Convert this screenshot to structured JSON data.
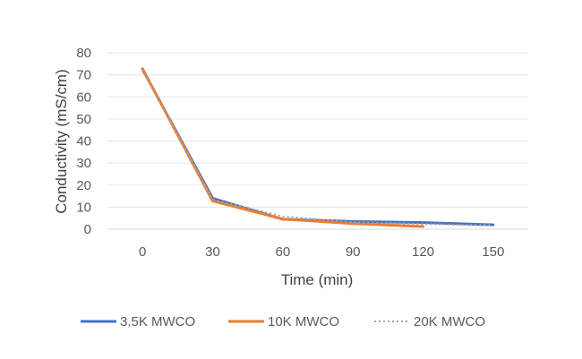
{
  "chart_data": {
    "type": "line",
    "x": [
      0,
      30,
      60,
      90,
      120,
      150
    ],
    "xlabel": "Time (min)",
    "ylabel": "Conductivity (mS/cm)",
    "ylim": [
      0,
      80
    ],
    "yticks": [
      0,
      10,
      20,
      30,
      40,
      50,
      60,
      70,
      80
    ],
    "grid": true,
    "legend": "bottom",
    "series": [
      {
        "name": "3.5K MWCO",
        "color": "#4472C4",
        "style": "solid",
        "values": [
          72.5,
          14,
          4.5,
          3.5,
          3,
          2
        ]
      },
      {
        "name": "10K MWCO",
        "color": "#ED7D31",
        "style": "solid",
        "values": [
          72.8,
          12.8,
          4.6,
          2.5,
          1.2,
          null
        ]
      },
      {
        "name": "20K MWCO",
        "color": "#A5A5A5",
        "style": "dotted",
        "values": [
          72.3,
          13.5,
          5.8,
          3.2,
          2.3,
          1.8
        ]
      }
    ]
  }
}
